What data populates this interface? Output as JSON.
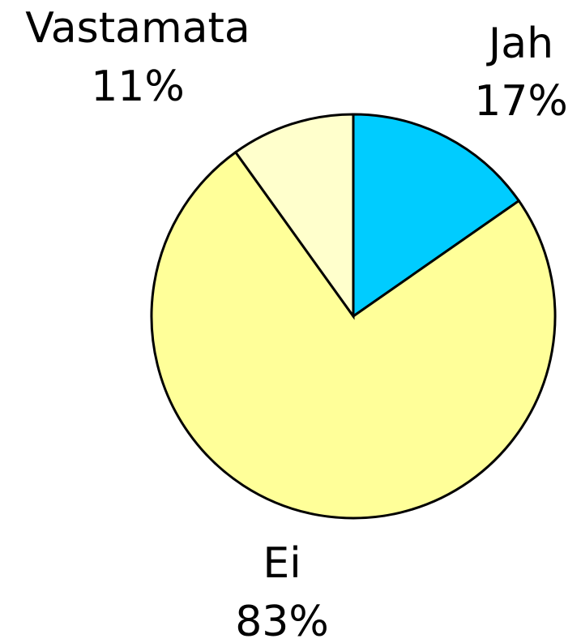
{
  "chart_data": {
    "type": "pie",
    "categories": [
      "Jah",
      "Ei",
      "Vastamata"
    ],
    "values": [
      17,
      83,
      11
    ],
    "value_labels": [
      "17%",
      "83%",
      "11%"
    ],
    "colors": [
      "#00ccff",
      "#ffff99",
      "#ffffcc"
    ]
  }
}
